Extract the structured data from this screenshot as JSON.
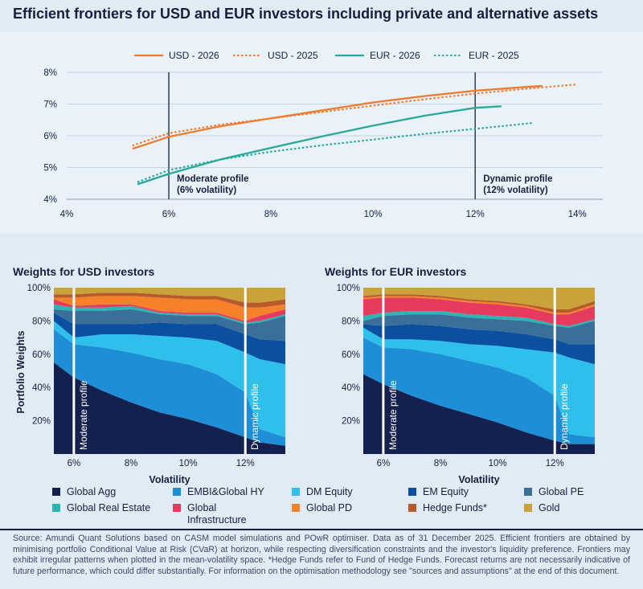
{
  "title": "Efficient frontiers for USD and EUR investors including private and alternative assets",
  "frontier": {
    "legend": [
      "USD - 2026",
      "USD - 2025",
      "EUR - 2026",
      "EUR - 2025"
    ],
    "markers": [
      {
        "line1": "Moderate profile",
        "line2": "(6% volatility)"
      },
      {
        "line1": "Dynamic profile",
        "line2": "(12% volatility)"
      }
    ]
  },
  "usd_panel": {
    "title": "Weights for USD investors",
    "ylabel": "Portfolio Weights",
    "xlabel": "Volatility",
    "moderate_label": "Moderate profile",
    "dynamic_label": "Dynamic profile"
  },
  "eur_panel": {
    "title": "Weights for EUR investors",
    "xlabel": "Volatility",
    "moderate_label": "Moderate profile",
    "dynamic_label": "Dynamic profile"
  },
  "legend": [
    {
      "label": "Global Agg",
      "color": "#14214f"
    },
    {
      "label": "EMBI&Global HY",
      "color": "#1e8fd6"
    },
    {
      "label": "DM Equity",
      "color": "#2ec0ea"
    },
    {
      "label": "EM Equity",
      "color": "#0b4fa0"
    },
    {
      "label": "Global PE",
      "color": "#3a6f9a"
    },
    {
      "label": "Global Real Estate",
      "color": "#2fb4b4"
    },
    {
      "label": "Global\nInfrastructure",
      "color": "#e63a5f"
    },
    {
      "label": "Global PD",
      "color": "#f5822a"
    },
    {
      "label": "Hedge Funds*",
      "color": "#b85a2a"
    },
    {
      "label": "Gold",
      "color": "#c9a33a"
    }
  ],
  "source_note": "Source: Amundi Quant Solutions based on CASM model simulations and POwR optimiser. Data as of 31 December 2025. Efficient frontiers are obtained by minimising portfolio Conditional Value at Risk (CVaR) at horizon, while respecting diversification constraints and the investor's liquidity preference. Frontiers may exhibit irregular patterns when plotted in the mean-volatility space. *Hedge Funds refer to Fund of Hedge Funds. Forecast returns are not necessarily indicative of future performance, which could differ substantially. For information on the optimisation methodology see \"sources and assumptions\" at the end of this document.",
  "chart_data": [
    {
      "type": "line",
      "title": "Efficient frontiers for USD and EUR investors including private and alternative assets",
      "xlabel": "",
      "ylabel": "",
      "xlim": [
        4,
        14.5
      ],
      "ylim": [
        4,
        8
      ],
      "xticks": [
        "4%",
        "6%",
        "8%",
        "10%",
        "12%",
        "14%"
      ],
      "yticks": [
        "4%",
        "5%",
        "6%",
        "7%",
        "8%"
      ],
      "grid": true,
      "legend_position": "top",
      "vlines": [
        6,
        12
      ],
      "series": [
        {
          "name": "USD - 2026",
          "color": "#f07a2e",
          "style": "solid",
          "x": [
            5.3,
            5.5,
            6.0,
            7.0,
            8.0,
            9.0,
            10.0,
            11.0,
            12.0,
            13.0,
            13.3
          ],
          "y": [
            5.6,
            5.7,
            5.97,
            6.3,
            6.55,
            6.8,
            7.05,
            7.25,
            7.42,
            7.54,
            7.57
          ]
        },
        {
          "name": "USD - 2025",
          "color": "#f07a2e",
          "style": "dotted",
          "x": [
            5.3,
            6.0,
            7.0,
            8.0,
            9.0,
            10.0,
            11.0,
            12.0,
            13.0,
            14.0
          ],
          "y": [
            5.7,
            6.08,
            6.35,
            6.55,
            6.75,
            6.95,
            7.15,
            7.33,
            7.48,
            7.62
          ]
        },
        {
          "name": "EUR - 2026",
          "color": "#2aa89a",
          "style": "solid",
          "x": [
            5.4,
            6.0,
            7.0,
            8.0,
            9.0,
            10.0,
            11.0,
            12.0,
            12.5
          ],
          "y": [
            4.48,
            4.8,
            5.25,
            5.62,
            5.98,
            6.32,
            6.63,
            6.88,
            6.93
          ]
        },
        {
          "name": "EUR - 2025",
          "color": "#2aa89a",
          "style": "dotted",
          "x": [
            5.4,
            6.0,
            7.0,
            8.0,
            9.0,
            10.0,
            11.0,
            12.0,
            13.1
          ],
          "y": [
            4.55,
            4.92,
            5.25,
            5.5,
            5.7,
            5.88,
            6.06,
            6.22,
            6.4
          ]
        }
      ]
    },
    {
      "type": "area",
      "title": "Weights for USD investors",
      "xlabel": "Volatility",
      "ylabel": "Portfolio Weights",
      "xlim": [
        5.3,
        13.4
      ],
      "ylim": [
        0,
        100
      ],
      "xticks": [
        "6%",
        "8%",
        "10%",
        "12%"
      ],
      "yticks": [
        "20%",
        "40%",
        "60%",
        "80%",
        "100%"
      ],
      "vlines": [
        6,
        12
      ],
      "x": [
        5.3,
        6.0,
        7.0,
        8.0,
        9.0,
        10.0,
        11.0,
        12.0,
        12.5,
        13.4
      ],
      "series": [
        {
          "name": "Global Agg",
          "values": [
            55,
            46,
            38,
            31,
            25,
            21,
            16,
            10,
            7,
            5
          ]
        },
        {
          "name": "EMBI&Global HY",
          "values": [
            20,
            20,
            26,
            30,
            32,
            33,
            32,
            27,
            8,
            5
          ]
        },
        {
          "name": "DM Equity",
          "values": [
            5,
            4,
            8,
            11,
            14,
            16,
            20,
            24,
            42,
            44
          ]
        },
        {
          "name": "EM Equity",
          "values": [
            5,
            8,
            6,
            6,
            8,
            8,
            10,
            11,
            12,
            14
          ]
        },
        {
          "name": "Global PE",
          "values": [
            2,
            8,
            8,
            9,
            5,
            5,
            5,
            6,
            10,
            15
          ]
        },
        {
          "name": "Global Real Estate",
          "values": [
            3,
            2,
            2,
            2,
            1,
            1,
            1,
            1,
            1,
            1
          ]
        },
        {
          "name": "Global\nInfrastructure",
          "values": [
            3,
            1,
            2,
            1,
            1,
            1,
            1,
            1,
            3,
            3
          ]
        },
        {
          "name": "Global PD",
          "values": [
            1,
            5,
            5,
            5,
            8,
            8,
            8,
            8,
            5,
            3
          ]
        },
        {
          "name": "Hedge Funds*",
          "values": [
            2,
            2,
            2,
            2,
            2,
            2,
            2,
            3,
            3,
            3
          ]
        },
        {
          "name": "Gold",
          "values": [
            4,
            4,
            3,
            3,
            4,
            5,
            5,
            9,
            9,
            7
          ]
        }
      ]
    },
    {
      "type": "area",
      "title": "Weights for EUR investors",
      "xlabel": "Volatility",
      "ylabel": "",
      "xlim": [
        5.3,
        13.4
      ],
      "ylim": [
        0,
        100
      ],
      "xticks": [
        "6%",
        "8%",
        "10%",
        "12%"
      ],
      "yticks": [
        "20%",
        "40%",
        "60%",
        "80%",
        "100%"
      ],
      "vlines": [
        6,
        12
      ],
      "x": [
        5.3,
        6.0,
        7.0,
        8.0,
        9.0,
        10.0,
        11.0,
        12.0,
        12.5,
        13.4
      ],
      "series": [
        {
          "name": "Global Agg",
          "values": [
            48,
            42,
            35,
            29,
            24,
            19,
            13,
            8,
            6,
            6
          ]
        },
        {
          "name": "EMBI&Global HY",
          "values": [
            22,
            22,
            28,
            31,
            32,
            33,
            33,
            27,
            6,
            4
          ]
        },
        {
          "name": "DM Equity",
          "values": [
            6,
            5,
            6,
            8,
            10,
            13,
            17,
            26,
            46,
            44
          ]
        },
        {
          "name": "EM Equity",
          "values": [
            2,
            8,
            9,
            9,
            9,
            9,
            9,
            8,
            8,
            12
          ]
        },
        {
          "name": "Global PE",
          "values": [
            2,
            6,
            6,
            7,
            7,
            7,
            8,
            8,
            10,
            14
          ]
        },
        {
          "name": "Global Real Estate",
          "values": [
            3,
            2,
            2,
            2,
            2,
            2,
            2,
            1,
            1,
            1
          ]
        },
        {
          "name": "Global\nInfrastructure",
          "values": [
            10,
            9,
            8,
            7,
            7,
            7,
            6,
            6,
            7,
            8
          ]
        },
        {
          "name": "Global PD",
          "values": [
            1,
            1,
            1,
            1,
            1,
            1,
            1,
            1,
            1,
            1
          ]
        },
        {
          "name": "Hedge Funds*",
          "values": [
            1,
            1,
            1,
            1,
            1,
            1,
            1,
            2,
            2,
            2
          ]
        },
        {
          "name": "Gold",
          "values": [
            5,
            4,
            4,
            5,
            7,
            8,
            10,
            13,
            13,
            8
          ]
        }
      ]
    }
  ]
}
